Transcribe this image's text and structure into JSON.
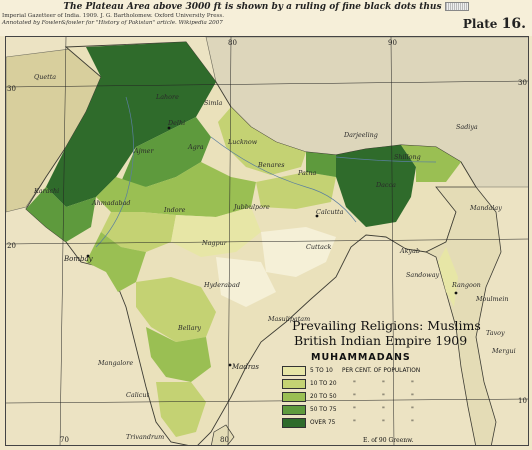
{
  "header": {
    "plateau_note": "The Plateau Area above 3000 ft is shown by a ruling of fine black dots thus",
    "plate_label": "Plate",
    "plate_number": "16.",
    "credit_lines": [
      "Imperial Gazetteer of India. 1909. J. G. Bartholomew. Oxford University Press.",
      "Annotated by Fowler&fowler for \"History of Pakistan\" article. Wikipedia 2007"
    ]
  },
  "annotation": {
    "title_line1": "Prevailing Religions: Muslims",
    "title_line2": "British Indian Empire 1909"
  },
  "legend": {
    "heading": "MUHAMMADANS",
    "rows": [
      {
        "range": "5 TO 10",
        "text": "PER CENT. OF POPULATION",
        "color": "#e7e6a6"
      },
      {
        "range": "10 TO 20",
        "text": "\"",
        "color": "#c4d273"
      },
      {
        "range": "20 TO 50",
        "text": "\"",
        "color": "#9abf53"
      },
      {
        "range": "50 TO 75",
        "text": "\"",
        "color": "#5e9a3d"
      },
      {
        "range": "OVER 75",
        "text": "\"",
        "color": "#2f6b2b"
      }
    ]
  },
  "graticule": {
    "top": [
      "80",
      "90"
    ],
    "bottom": [
      "70",
      "80"
    ],
    "left": [
      "30",
      "20"
    ],
    "right": [
      "30",
      "10"
    ],
    "bottom_note": "E. of 90 Greenw."
  },
  "places": [
    "Quetta",
    "Lahore",
    "Simla",
    "Delhi",
    "Ajmer",
    "Agra",
    "Lucknow",
    "Benares",
    "Patna",
    "Darjeeling",
    "Sadiya",
    "Shillong",
    "Dacca",
    "Mandalay",
    "Calcutta",
    "Cuttack",
    "Nagpur",
    "Jubbulpore",
    "Indore",
    "Bombay",
    "Hyderabad",
    "Bellary",
    "Masulipatam",
    "Mangalore",
    "Madras",
    "Calicut",
    "Trivandrum",
    "Akyab",
    "Sandoway",
    "Rangoon",
    "Moulmein",
    "Mergui",
    "Tavoy",
    "Ahmadabad",
    "Karachi"
  ]
}
